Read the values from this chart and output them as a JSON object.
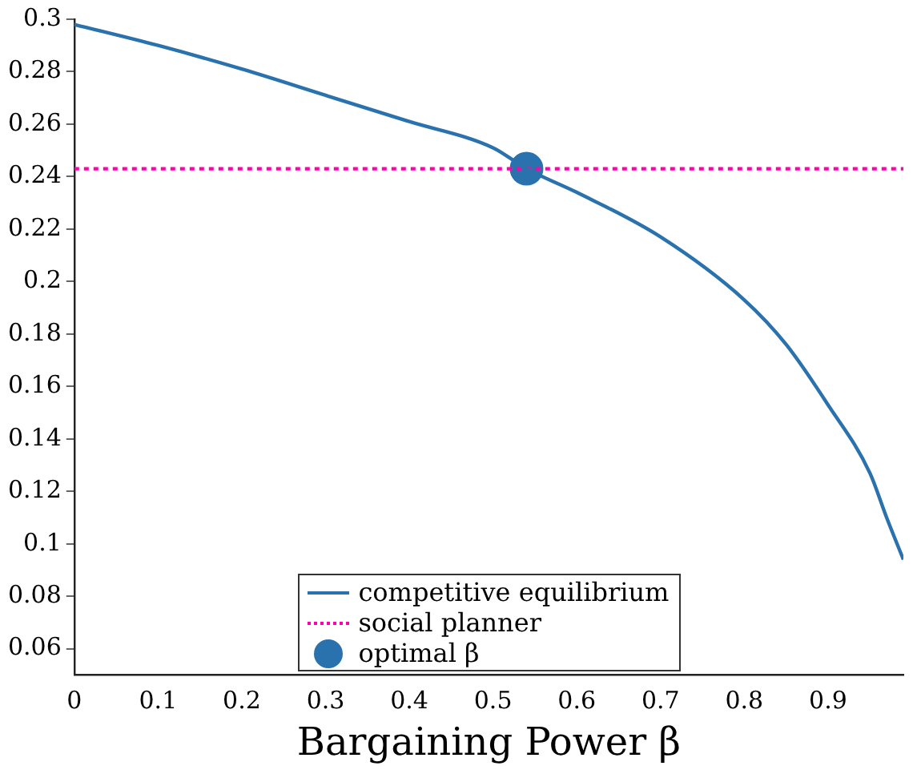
{
  "chart_data": {
    "type": "line",
    "xlabel": "Bargaining Power β",
    "xlim": [
      0,
      0.99
    ],
    "ylim": [
      0.05,
      0.3
    ],
    "xticks": [
      0,
      0.1,
      0.2,
      0.3,
      0.4,
      0.5,
      0.6,
      0.7,
      0.8,
      0.9
    ],
    "yticks": [
      0.06,
      0.08,
      0.1,
      0.12,
      0.14,
      0.16,
      0.18,
      0.2,
      0.22,
      0.24,
      0.26,
      0.28,
      0.3
    ],
    "grid": false,
    "legend": "bottom",
    "series": [
      {
        "name": "competitive equilibrium",
        "color": "#2a72ad",
        "line_style": "solid",
        "marker": "none",
        "x": [
          0,
          0.1,
          0.2,
          0.3,
          0.4,
          0.5,
          0.54,
          0.6,
          0.7,
          0.8,
          0.85,
          0.9,
          0.95,
          0.97,
          0.99
        ],
        "values": [
          0.298,
          0.29,
          0.281,
          0.271,
          0.261,
          0.251,
          0.243,
          0.234,
          0.217,
          0.193,
          0.176,
          0.153,
          0.127,
          0.11,
          0.094
        ]
      },
      {
        "name": "social planner",
        "color": "#ff00aa",
        "line_style": "dotted",
        "marker": "none",
        "x": [
          0,
          0.99
        ],
        "values": [
          0.243,
          0.243
        ]
      },
      {
        "name": "optimal β",
        "type": "scatter",
        "color": "#2a72ad",
        "marker": "circle",
        "x": [
          0.54
        ],
        "values": [
          0.243
        ]
      }
    ]
  }
}
